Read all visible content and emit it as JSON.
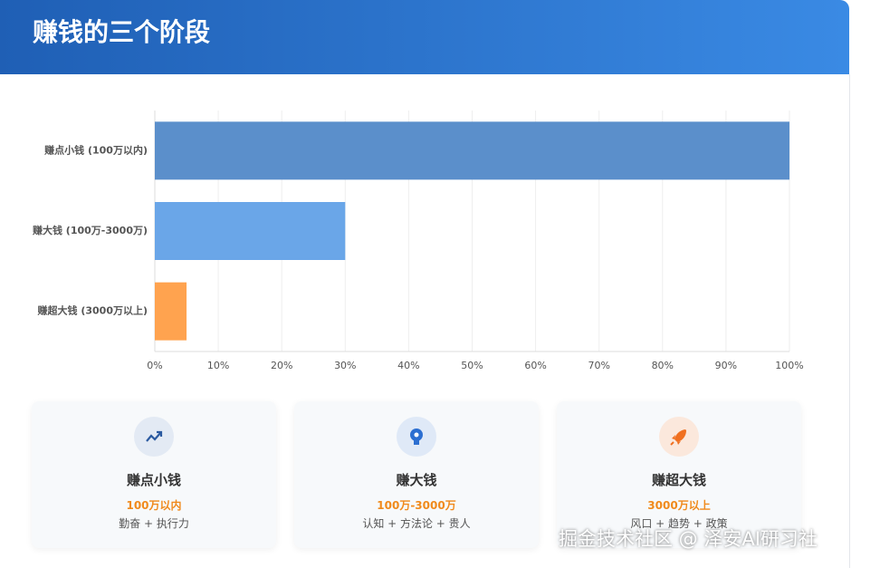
{
  "header": {
    "title": "赚钱的三个阶段"
  },
  "chart_data": {
    "type": "hbar",
    "categories": [
      "赚点小钱 (100万以内)",
      "赚大钱 (100万-3000万)",
      "赚超大钱 (3000万以上)"
    ],
    "values": [
      100,
      30,
      5
    ],
    "colors": [
      "#5b8fcb",
      "#6aa6e8",
      "#ffa34f"
    ],
    "xlim": [
      0,
      100
    ],
    "xticks": [
      {
        "value": 0,
        "label": "0%"
      },
      {
        "value": 10,
        "label": "10%"
      },
      {
        "value": 20,
        "label": "20%"
      },
      {
        "value": 30,
        "label": "30%"
      },
      {
        "value": 40,
        "label": "40%"
      },
      {
        "value": 50,
        "label": "50%"
      },
      {
        "value": 60,
        "label": "60%"
      },
      {
        "value": 70,
        "label": "70%"
      },
      {
        "value": 80,
        "label": "80%"
      },
      {
        "value": 90,
        "label": "90%"
      },
      {
        "value": 100,
        "label": "100%"
      }
    ],
    "grid": true
  },
  "cards": [
    {
      "title": "赚点小钱",
      "range": "100万以内",
      "keys": "勤奋 + 执行力"
    },
    {
      "title": "赚大钱",
      "range": "100万-3000万",
      "keys": "认知 + 方法论 + 贵人"
    },
    {
      "title": "赚超大钱",
      "range": "3000万以上",
      "keys": "风口 + 趋势 + 政策"
    }
  ],
  "watermark": "掘金技术社区 @ 泽安AI研习社"
}
